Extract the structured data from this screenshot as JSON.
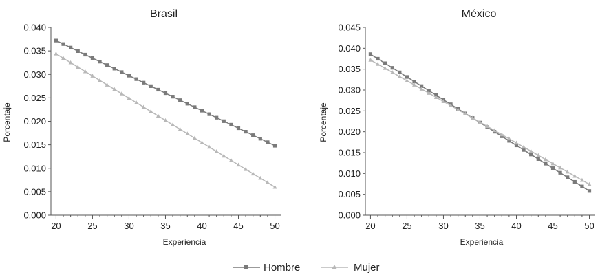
{
  "legend": {
    "hombre": "Hombre",
    "mujer": "Mujer"
  },
  "colors": {
    "hombre": "#7a7a7a",
    "mujer": "#b8b8b8"
  },
  "chart_data": [
    {
      "type": "line",
      "title": "Brasil",
      "xlabel": "Experiencia",
      "ylabel": "Porcentaje",
      "xlim": [
        19.3,
        50.8
      ],
      "ylim": [
        0,
        0.04
      ],
      "xticks": [
        "20",
        "25",
        "30",
        "35",
        "40",
        "45",
        "50"
      ],
      "yticks": [
        "0.000",
        "0.005",
        "0.010",
        "0.015",
        "0.020",
        "0.025",
        "0.030",
        "0.035",
        "0.040"
      ],
      "x": [
        20,
        50
      ],
      "series": [
        {
          "name": "Hombre",
          "start": 0.0372,
          "end": 0.0148,
          "marker": "square"
        },
        {
          "name": "Mujer",
          "start": 0.0344,
          "end": 0.006,
          "marker": "triangle"
        }
      ]
    },
    {
      "type": "line",
      "title": "México",
      "xlabel": "Experiencia",
      "ylabel": "Porcentaje",
      "xlim": [
        19.3,
        50.8
      ],
      "ylim": [
        0,
        0.045
      ],
      "xticks": [
        "20",
        "25",
        "30",
        "35",
        "40",
        "45",
        "50"
      ],
      "yticks": [
        "0.000",
        "0.005",
        "0.010",
        "0.015",
        "0.020",
        "0.025",
        "0.030",
        "0.035",
        "0.040",
        "0.045"
      ],
      "x": [
        20,
        50
      ],
      "series": [
        {
          "name": "Hombre",
          "start": 0.0386,
          "end": 0.0058,
          "marker": "square"
        },
        {
          "name": "Mujer",
          "start": 0.0372,
          "end": 0.0074,
          "marker": "triangle"
        }
      ]
    }
  ]
}
